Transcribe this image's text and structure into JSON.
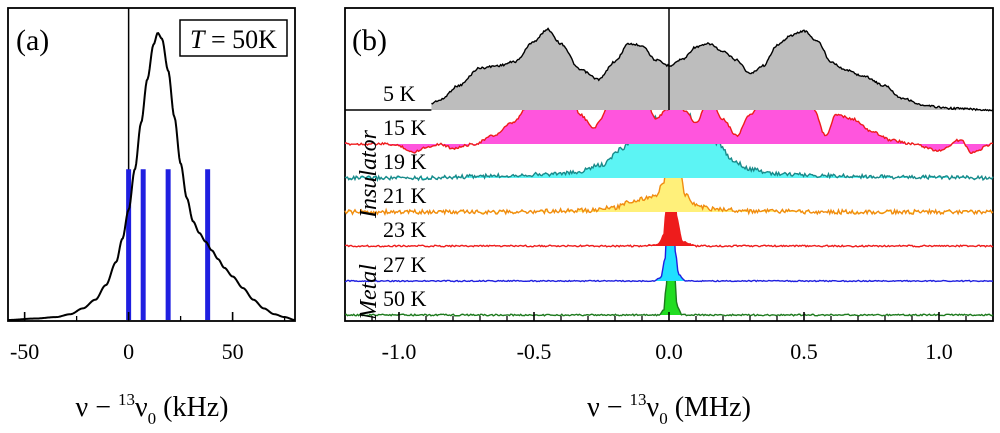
{
  "chart_data": [
    {
      "panel": "a",
      "type": "line",
      "panel_label": "(a)",
      "legend_box": {
        "symbol": "T",
        "equals": " = ",
        "value": "50K"
      },
      "xlabel": {
        "main": "ν − ",
        "sup": "13",
        "nu": "ν",
        "sub": "0",
        "unit": " (kHz)"
      },
      "xlim": [
        -58,
        80
      ],
      "xticks": [
        -50,
        0,
        50
      ],
      "xtick_labels": [
        "-50",
        "0",
        "50"
      ],
      "ylim": [
        0,
        1.0
      ],
      "spectrum_color": "#000000",
      "spectrum_peak_center_khz": 14,
      "spectrum": {
        "x": [
          -58,
          -45,
          -35,
          -28,
          -22,
          -16,
          -11,
          -6,
          -3,
          0,
          3,
          6,
          9,
          12,
          14,
          16,
          19,
          22,
          25,
          28,
          31,
          34,
          37,
          40,
          43,
          46,
          50,
          55,
          60,
          65,
          70,
          75,
          80
        ],
        "y": [
          0.0,
          0.005,
          0.01,
          0.02,
          0.04,
          0.07,
          0.12,
          0.2,
          0.28,
          0.38,
          0.52,
          0.68,
          0.83,
          0.95,
          0.99,
          0.97,
          0.86,
          0.7,
          0.54,
          0.42,
          0.34,
          0.3,
          0.27,
          0.24,
          0.21,
          0.18,
          0.15,
          0.11,
          0.07,
          0.04,
          0.02,
          0.01,
          0.0
        ]
      },
      "stick_lines": {
        "x": [
          0,
          7,
          19,
          38
        ],
        "height": 0.52,
        "color": "#1f1fe0"
      },
      "vertical_zero_line": 0
    },
    {
      "panel": "b",
      "type": "line",
      "panel_label": "(b)",
      "xlabel": {
        "main": "ν − ",
        "sup": "13",
        "nu": "ν",
        "sub": "0",
        "unit": " (MHz)"
      },
      "xlim": [
        -1.2,
        1.2
      ],
      "xticks": [
        -1.0,
        -0.5,
        0.0,
        0.5,
        1.0
      ],
      "xtick_labels": [
        "-1.0",
        "-0.5",
        "0.0",
        "0.5",
        "1.0"
      ],
      "phase_labels": [
        {
          "text": "Insulator",
          "range": [
            "5 K",
            "21 K"
          ]
        },
        {
          "text": "Metal",
          "range": [
            "27 K",
            "50 K"
          ]
        }
      ],
      "series": [
        {
          "name": "5 K",
          "line": "#000000",
          "fill": "#bdbdbd",
          "amp": 0.95,
          "x": [
            -1.2,
            -0.95,
            -0.9,
            -0.85,
            -0.78,
            -0.7,
            -0.63,
            -0.57,
            -0.5,
            -0.45,
            -0.4,
            -0.33,
            -0.26,
            -0.2,
            -0.15,
            -0.1,
            -0.05,
            0.0,
            0.05,
            0.1,
            0.15,
            0.2,
            0.25,
            0.3,
            0.35,
            0.4,
            0.45,
            0.5,
            0.55,
            0.6,
            0.65,
            0.72,
            0.8,
            0.86,
            0.95,
            1.05,
            1.2
          ],
          "y": [
            0,
            0.0,
            0.05,
            0.12,
            0.3,
            0.52,
            0.55,
            0.6,
            0.85,
            1.0,
            0.82,
            0.5,
            0.38,
            0.6,
            0.82,
            0.8,
            0.62,
            0.55,
            0.63,
            0.78,
            0.82,
            0.72,
            0.62,
            0.45,
            0.55,
            0.8,
            0.92,
            0.98,
            0.85,
            0.6,
            0.5,
            0.42,
            0.3,
            0.15,
            0.05,
            0.02,
            0
          ]
        },
        {
          "name": "15 K",
          "line": "#ee1c1c",
          "fill": "#ff55dd",
          "amp": 0.95,
          "x": [
            -1.2,
            -1.05,
            -1.0,
            -0.95,
            -0.9,
            -0.85,
            -0.8,
            -0.72,
            -0.65,
            -0.58,
            -0.52,
            -0.46,
            -0.42,
            -0.38,
            -0.33,
            -0.28,
            -0.2,
            -0.14,
            -0.1,
            -0.05,
            -0.01,
            0.02,
            0.06,
            0.1,
            0.15,
            0.2,
            0.25,
            0.3,
            0.36,
            0.42,
            0.48,
            0.53,
            0.58,
            0.62,
            0.68,
            0.75,
            0.82,
            0.9,
            1.0,
            1.08,
            1.12,
            1.2
          ],
          "y": [
            0,
            0.0,
            -0.02,
            -0.1,
            -0.04,
            0.0,
            -0.05,
            0.0,
            0.1,
            0.25,
            0.45,
            0.7,
            1.0,
            0.85,
            0.35,
            0.2,
            0.55,
            0.8,
            0.7,
            0.3,
            0.4,
            0.62,
            0.4,
            0.25,
            0.55,
            0.3,
            0.1,
            0.35,
            0.55,
            0.9,
            0.85,
            0.45,
            0.1,
            0.35,
            0.3,
            0.15,
            0.05,
            0.0,
            -0.08,
            0.05,
            -0.1,
            0
          ]
        },
        {
          "name": "19 K",
          "line": "#1a8a8a",
          "fill": "#5cf4f4",
          "amp": 1.0,
          "x": [
            -1.2,
            -0.9,
            -0.7,
            -0.5,
            -0.35,
            -0.25,
            -0.17,
            -0.12,
            -0.08,
            -0.05,
            -0.02,
            0.0,
            0.02,
            0.04,
            0.07,
            0.1,
            0.14,
            0.18,
            0.24,
            0.3,
            0.4,
            0.55,
            0.7,
            0.9,
            1.2
          ],
          "y": [
            0,
            0.0,
            0.02,
            0.04,
            0.06,
            0.15,
            0.35,
            0.55,
            0.45,
            0.7,
            0.6,
            1.0,
            0.85,
            0.55,
            0.75,
            0.6,
            0.65,
            0.4,
            0.2,
            0.1,
            0.05,
            0.03,
            0.02,
            0.01,
            0
          ]
        },
        {
          "name": "21 K",
          "line": "#f08c10",
          "fill": "#fff07a",
          "amp": 1.0,
          "x": [
            -1.2,
            -0.6,
            -0.3,
            -0.2,
            -0.15,
            -0.1,
            -0.05,
            -0.02,
            0.0,
            0.015,
            0.03,
            0.06,
            0.1,
            0.15,
            0.2,
            0.3,
            0.6,
            1.2
          ],
          "y": [
            0,
            0.0,
            0.02,
            0.05,
            0.12,
            0.15,
            0.18,
            0.35,
            0.8,
            1.0,
            0.7,
            0.2,
            0.08,
            0.04,
            0.03,
            0.01,
            0.0,
            0
          ]
        },
        {
          "name": "23 K",
          "line": "#ee1c1c",
          "fill": "#ee1c1c",
          "amp": 1.0,
          "x": [
            -1.2,
            -0.1,
            -0.04,
            -0.02,
            -0.01,
            0.0,
            0.01,
            0.02,
            0.03,
            0.05,
            0.1,
            1.2
          ],
          "y": [
            0,
            0.0,
            0.02,
            0.12,
            0.45,
            0.92,
            1.0,
            0.7,
            0.3,
            0.05,
            0.0,
            0
          ]
        },
        {
          "name": "27 K",
          "line": "#1f1fe0",
          "fill": "#1fe0ff",
          "amp": 1.0,
          "x": [
            -1.2,
            -0.06,
            -0.03,
            -0.015,
            -0.005,
            0.005,
            0.015,
            0.025,
            0.035,
            0.06,
            1.2
          ],
          "y": [
            0,
            0.0,
            0.04,
            0.25,
            0.8,
            1.0,
            0.75,
            0.3,
            0.08,
            0.0,
            0
          ]
        },
        {
          "name": "50 K",
          "line": "#1d7a1d",
          "fill": "#22dd22",
          "amp": 1.0,
          "x": [
            -1.2,
            -0.04,
            -0.02,
            -0.01,
            0.0,
            0.01,
            0.02,
            0.03,
            0.05,
            1.2
          ],
          "y": [
            0,
            0.0,
            0.05,
            0.35,
            0.9,
            1.0,
            0.5,
            0.1,
            0.0,
            0
          ]
        }
      ],
      "vertical_zero_line": 0.0
    }
  ]
}
